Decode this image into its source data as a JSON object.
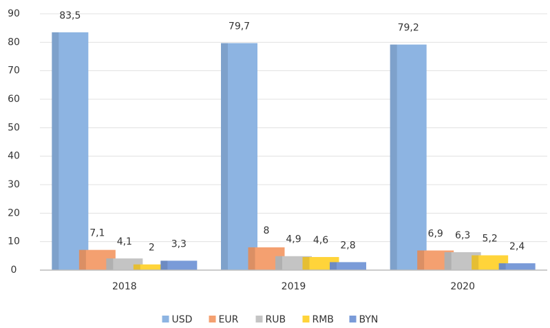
{
  "chart_data": {
    "type": "bar",
    "categories": [
      "2018",
      "2019",
      "2020"
    ],
    "series": [
      {
        "name": "USD",
        "color": "#8db4e2",
        "values": [
          83.5,
          79.7,
          79.2
        ],
        "value_labels": [
          "83,5",
          "79,7",
          "79,2"
        ]
      },
      {
        "name": "EUR",
        "color": "#f4a070",
        "values": [
          7.1,
          8,
          6.9
        ],
        "value_labels": [
          "7,1",
          "8",
          "6,9"
        ]
      },
      {
        "name": "RUB",
        "color": "#c4c4c4",
        "values": [
          4.1,
          4.9,
          6.3
        ],
        "value_labels": [
          "4,1",
          "4,9",
          "6,3"
        ]
      },
      {
        "name": "RMB",
        "color": "#ffd43a",
        "values": [
          2,
          4.6,
          5.2
        ],
        "value_labels": [
          "2",
          "4,6",
          "5,2"
        ]
      },
      {
        "name": "BYN",
        "color": "#7a9bd8",
        "values": [
          3.3,
          2.8,
          2.4
        ],
        "value_labels": [
          "3,3",
          "2,8",
          "2,4"
        ]
      }
    ],
    "ylim": [
      0,
      90
    ],
    "yticks": [
      0,
      10,
      20,
      30,
      40,
      50,
      60,
      70,
      80,
      90
    ],
    "grid": true,
    "legend": "bottom"
  }
}
